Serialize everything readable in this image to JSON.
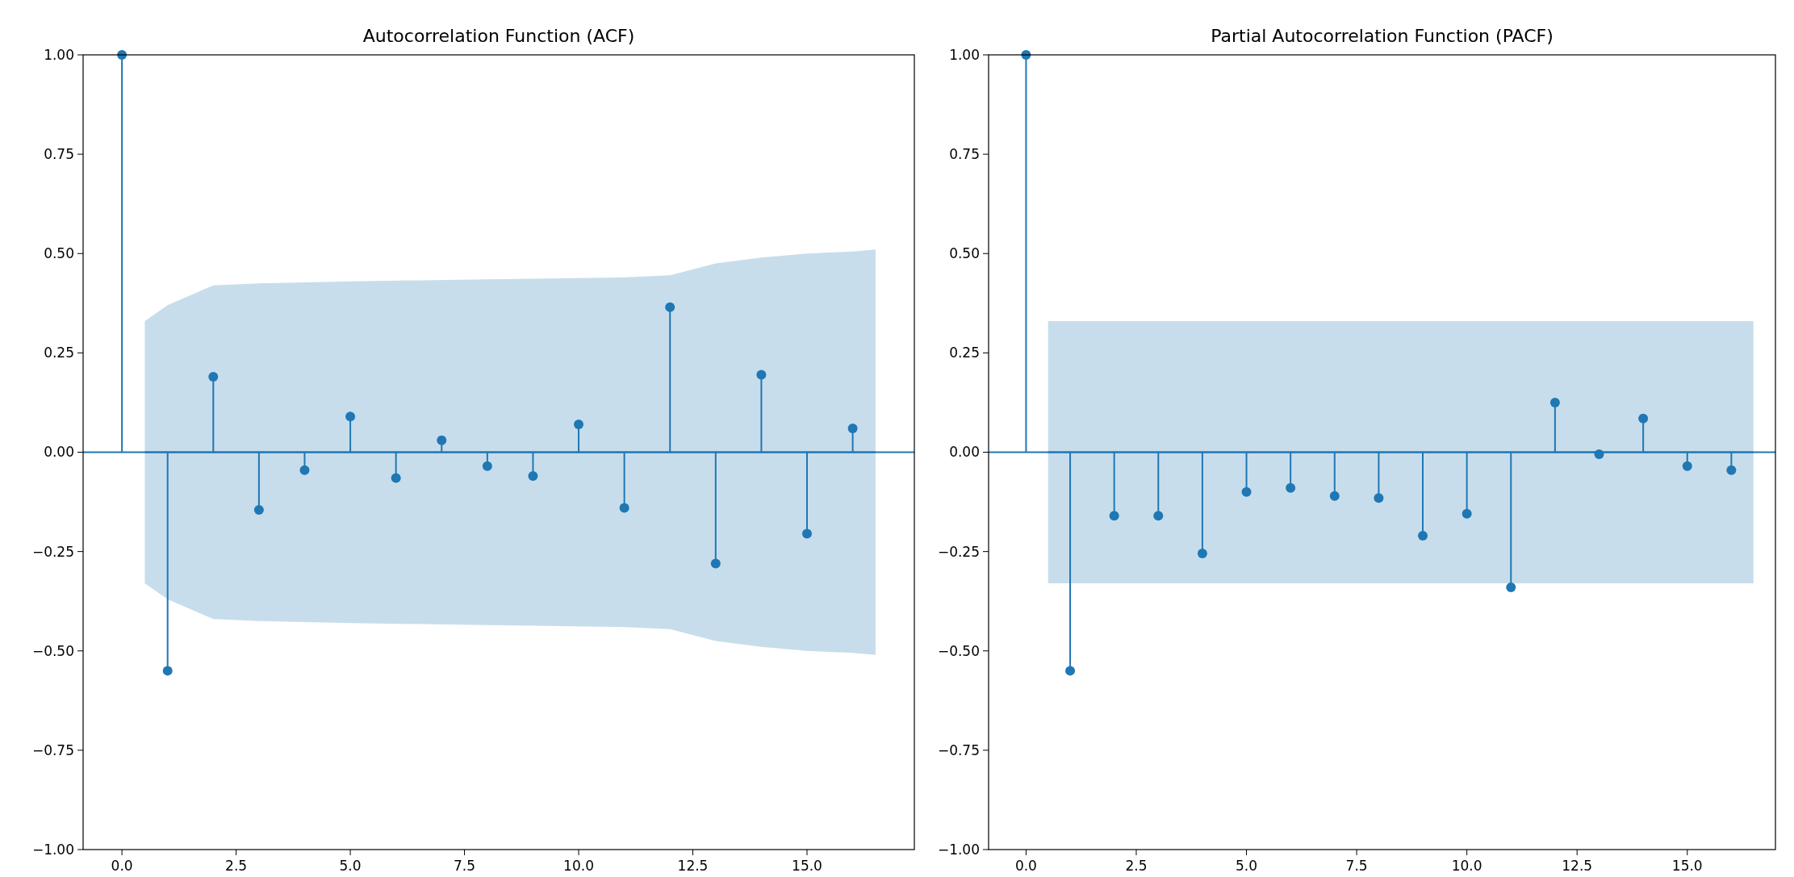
{
  "chart_data": [
    {
      "type": "lollipop",
      "title": "Autocorrelation Function (ACF)",
      "x": [
        0,
        1,
        2,
        3,
        4,
        5,
        6,
        7,
        8,
        9,
        10,
        11,
        12,
        13,
        14,
        15,
        16
      ],
      "series": [
        {
          "type": "line",
          "color": "#1f77b4",
          "x": [
            0.5,
            1,
            2,
            3,
            5,
            8,
            11,
            12,
            13,
            14,
            15,
            16,
            16.5
          ],
          "values": [
            0,
            0,
            0,
            0,
            0,
            0,
            0,
            0,
            0,
            0,
            0,
            0,
            0
          ],
          "marker": "none",
          "upper": [
            0.33,
            0.37,
            0.42,
            0.425,
            0.43,
            0.435,
            0.44,
            0.445,
            0.475,
            0.49,
            0.5,
            0.505,
            0.51
          ],
          "lower": [
            -0.33,
            -0.37,
            -0.42,
            -0.425,
            -0.43,
            -0.435,
            -0.44,
            -0.445,
            -0.475,
            -0.49,
            -0.5,
            -0.505,
            -0.51
          ]
        },
        {
          "color": "#1f77b4",
          "values": [
            1,
            -0.55,
            0.19,
            -0.145,
            -0.045,
            0.09,
            -0.065,
            0.03,
            -0.035,
            -0.06,
            0.07,
            -0.14,
            0.365,
            -0.28,
            0.195,
            -0.205,
            0.06
          ]
        }
      ],
      "ref_lines": [
        {
          "axis": "y",
          "value": 0,
          "color": "#1f77b4"
        }
      ],
      "marker": "circle",
      "xlim": [
        -0.85,
        17.35
      ],
      "ylim": [
        -1,
        1
      ],
      "xticks": [
        {
          "value": 0,
          "label": "0.0"
        },
        {
          "value": 2.5,
          "label": "2.5"
        },
        {
          "value": 5,
          "label": "5.0"
        },
        {
          "value": 7.5,
          "label": "7.5"
        },
        {
          "value": 10,
          "label": "10.0"
        },
        {
          "value": 12.5,
          "label": "12.5"
        },
        {
          "value": 15,
          "label": "15.0"
        }
      ],
      "yticks": [
        {
          "value": -1,
          "label": "−1.00"
        },
        {
          "value": -0.75,
          "label": "−0.75"
        },
        {
          "value": -0.5,
          "label": "−0.50"
        },
        {
          "value": -0.25,
          "label": "−0.25"
        },
        {
          "value": 0,
          "label": "0.00"
        },
        {
          "value": 0.25,
          "label": "0.25"
        },
        {
          "value": 0.5,
          "label": "0.50"
        },
        {
          "value": 0.75,
          "label": "0.75"
        },
        {
          "value": 1,
          "label": "1.00"
        }
      ]
    },
    {
      "type": "lollipop",
      "title": "Partial Autocorrelation Function (PACF)",
      "x": [
        0,
        1,
        2,
        3,
        4,
        5,
        6,
        7,
        8,
        9,
        10,
        11,
        12,
        13,
        14,
        15,
        16
      ],
      "series": [
        {
          "type": "line",
          "color": "#1f77b4",
          "x": [
            0.5,
            16.5
          ],
          "values": [
            0,
            0
          ],
          "marker": "none",
          "upper": [
            0.33,
            0.33
          ],
          "lower": [
            -0.33,
            -0.33
          ]
        },
        {
          "color": "#1f77b4",
          "values": [
            1,
            -0.55,
            -0.16,
            -0.16,
            -0.255,
            -0.1,
            -0.09,
            -0.11,
            -0.115,
            -0.21,
            -0.155,
            -0.34,
            0.125,
            -0.005,
            0.085,
            -0.035,
            -0.045
          ]
        }
      ],
      "ref_lines": [
        {
          "axis": "y",
          "value": 0,
          "color": "#1f77b4"
        }
      ],
      "marker": "circle",
      "xlim": [
        -0.85,
        17.0
      ],
      "ylim": [
        -1,
        1
      ],
      "xticks": [
        {
          "value": 0,
          "label": "0.0"
        },
        {
          "value": 2.5,
          "label": "2.5"
        },
        {
          "value": 5,
          "label": "5.0"
        },
        {
          "value": 7.5,
          "label": "7.5"
        },
        {
          "value": 10,
          "label": "10.0"
        },
        {
          "value": 12.5,
          "label": "12.5"
        },
        {
          "value": 15,
          "label": "15.0"
        }
      ],
      "yticks": [
        {
          "value": -1,
          "label": "−1.00"
        },
        {
          "value": -0.75,
          "label": "−0.75"
        },
        {
          "value": -0.5,
          "label": "−0.50"
        },
        {
          "value": -0.25,
          "label": "−0.25"
        },
        {
          "value": 0,
          "label": "0.00"
        },
        {
          "value": 0.25,
          "label": "0.25"
        },
        {
          "value": 0.5,
          "label": "0.50"
        },
        {
          "value": 0.75,
          "label": "0.75"
        },
        {
          "value": 1,
          "label": "1.00"
        }
      ]
    }
  ]
}
